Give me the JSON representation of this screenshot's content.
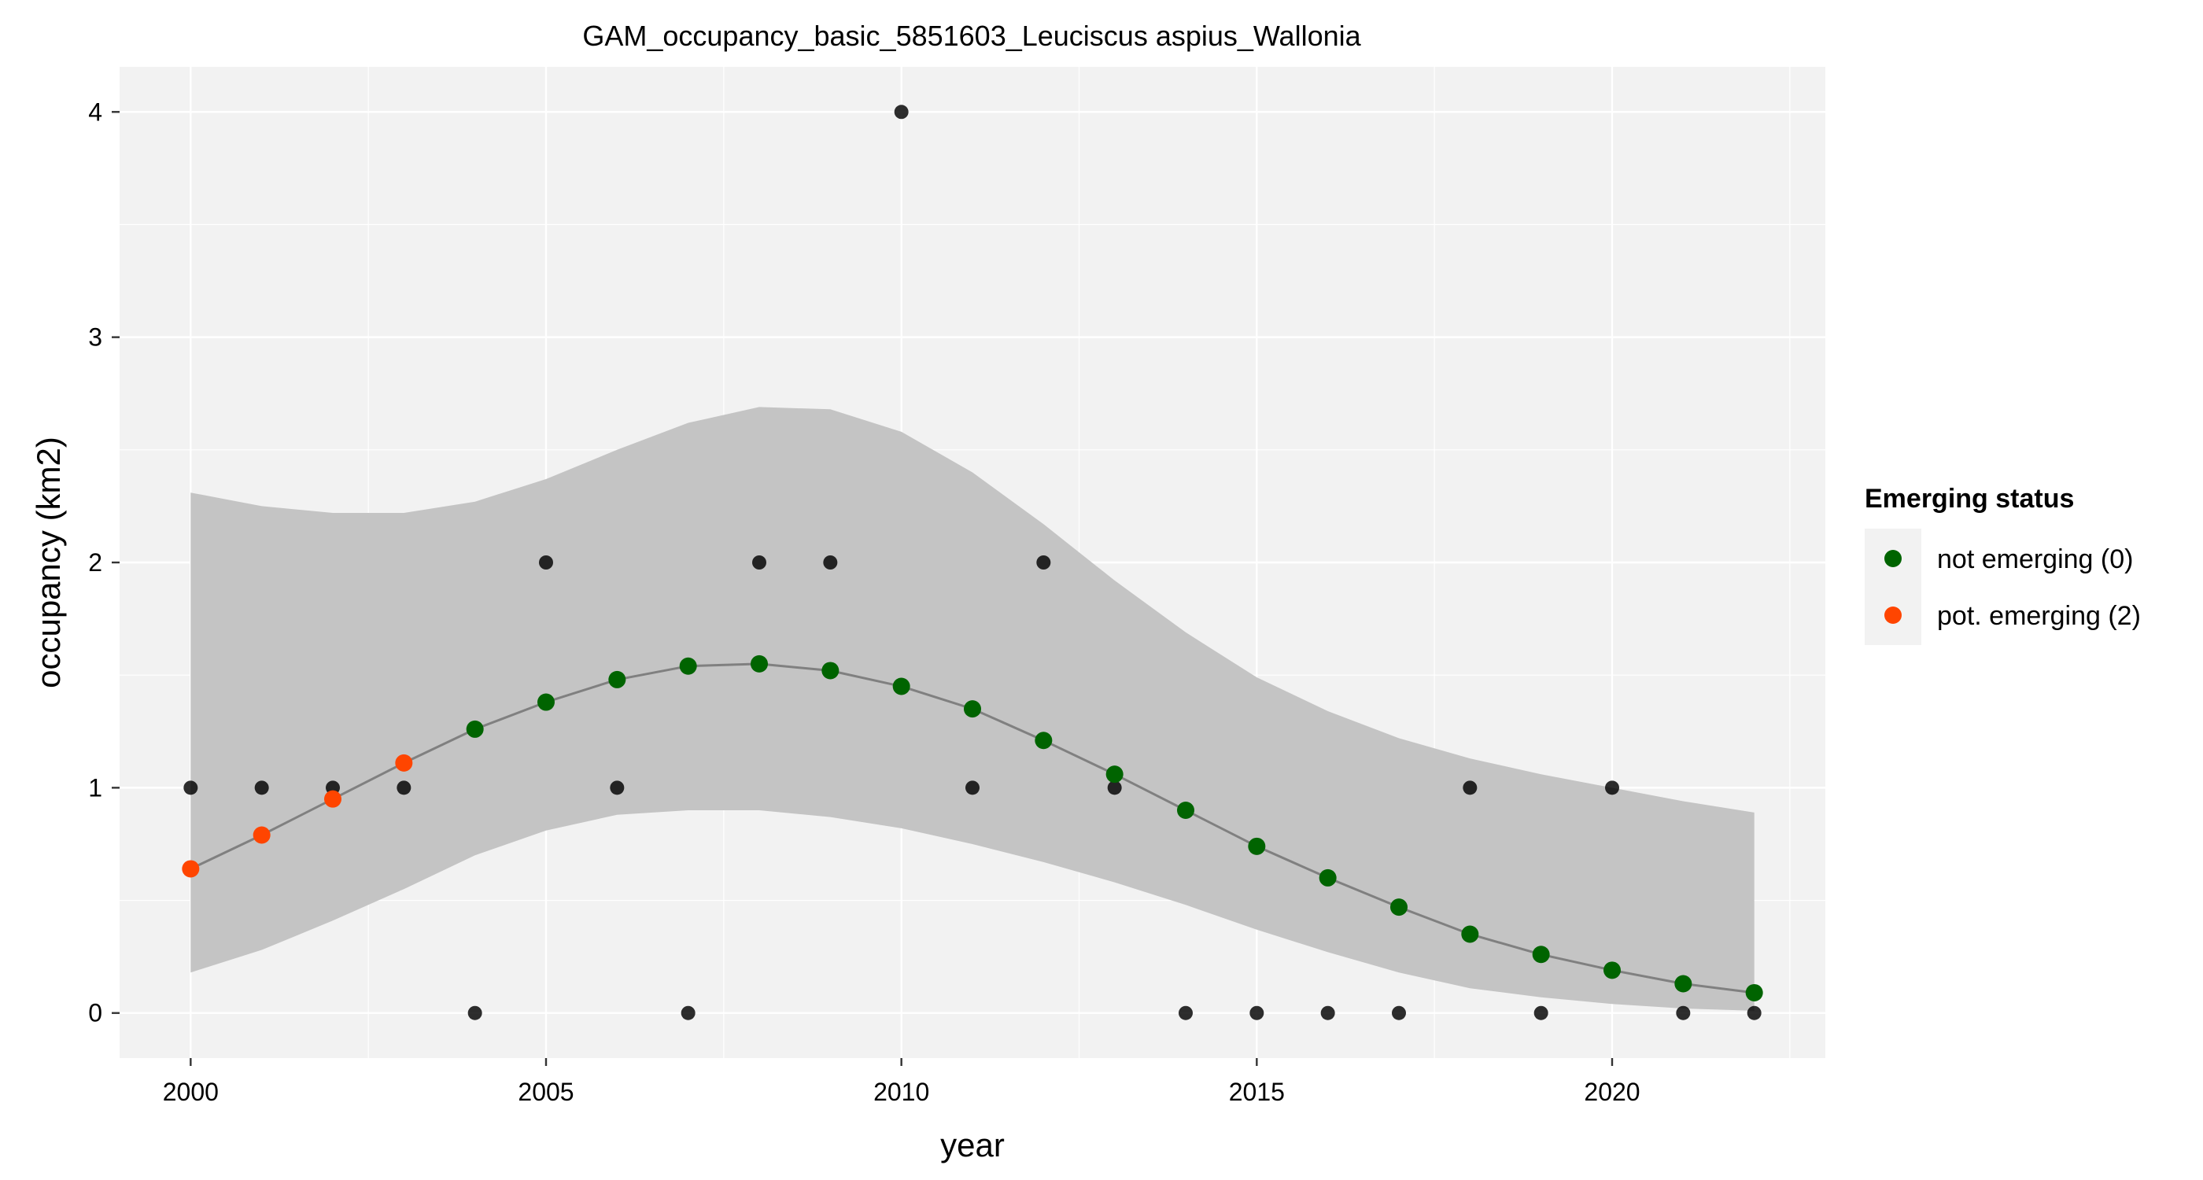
{
  "chart_data": {
    "type": "scatter",
    "title": "GAM_occupancy_basic_5851603_Leuciscus aspius_Wallonia",
    "xlabel": "year",
    "ylabel": "occupancy (km2)",
    "xlim": [
      1999,
      2023
    ],
    "ylim": [
      -0.2,
      4.2
    ],
    "x_ticks": [
      2000,
      2005,
      2010,
      2015,
      2020
    ],
    "y_ticks": [
      0,
      1,
      2,
      3,
      4
    ],
    "grid": true,
    "legend_position": "right",
    "legend": {
      "title": "Emerging status",
      "entries": [
        {
          "label": "not emerging (0)",
          "color": "#006400"
        },
        {
          "label": "pot. emerging (2)",
          "color": "#ff4500"
        }
      ]
    },
    "colors": {
      "panel_bg": "#f2f2f2",
      "grid": "#ffffff",
      "ribbon": "#c4c4c4",
      "fit_line": "#808080",
      "observed": "#000000",
      "not_emerging": "#006400",
      "pot_emerging": "#ff4500"
    },
    "observed": {
      "x": [
        2000,
        2001,
        2002,
        2003,
        2004,
        2005,
        2006,
        2007,
        2008,
        2009,
        2010,
        2011,
        2012,
        2013,
        2014,
        2015,
        2016,
        2017,
        2018,
        2019,
        2020,
        2021,
        2022
      ],
      "y": [
        1,
        1,
        1,
        1,
        0,
        2,
        1,
        0,
        2,
        2,
        4,
        1,
        2,
        1,
        0,
        0,
        0,
        0,
        1,
        0,
        1,
        0,
        0
      ]
    },
    "fit": {
      "x": [
        2000,
        2001,
        2002,
        2003,
        2004,
        2005,
        2006,
        2007,
        2008,
        2009,
        2010,
        2011,
        2012,
        2013,
        2014,
        2015,
        2016,
        2017,
        2018,
        2019,
        2020,
        2021,
        2022
      ],
      "y": [
        0.64,
        0.79,
        0.95,
        1.11,
        1.26,
        1.38,
        1.48,
        1.54,
        1.55,
        1.52,
        1.45,
        1.35,
        1.21,
        1.06,
        0.9,
        0.74,
        0.6,
        0.47,
        0.35,
        0.26,
        0.19,
        0.13,
        0.09
      ],
      "lower": [
        0.18,
        0.28,
        0.41,
        0.55,
        0.7,
        0.81,
        0.88,
        0.9,
        0.9,
        0.87,
        0.82,
        0.75,
        0.67,
        0.58,
        0.48,
        0.37,
        0.27,
        0.18,
        0.11,
        0.07,
        0.04,
        0.02,
        0.01
      ],
      "upper": [
        2.31,
        2.25,
        2.22,
        2.22,
        2.27,
        2.37,
        2.5,
        2.62,
        2.69,
        2.68,
        2.58,
        2.4,
        2.17,
        1.92,
        1.69,
        1.49,
        1.34,
        1.22,
        1.13,
        1.06,
        1.0,
        0.94,
        0.89
      ],
      "status": [
        2,
        2,
        2,
        2,
        0,
        0,
        0,
        0,
        0,
        0,
        0,
        0,
        0,
        0,
        0,
        0,
        0,
        0,
        0,
        0,
        0,
        0,
        0
      ]
    }
  }
}
